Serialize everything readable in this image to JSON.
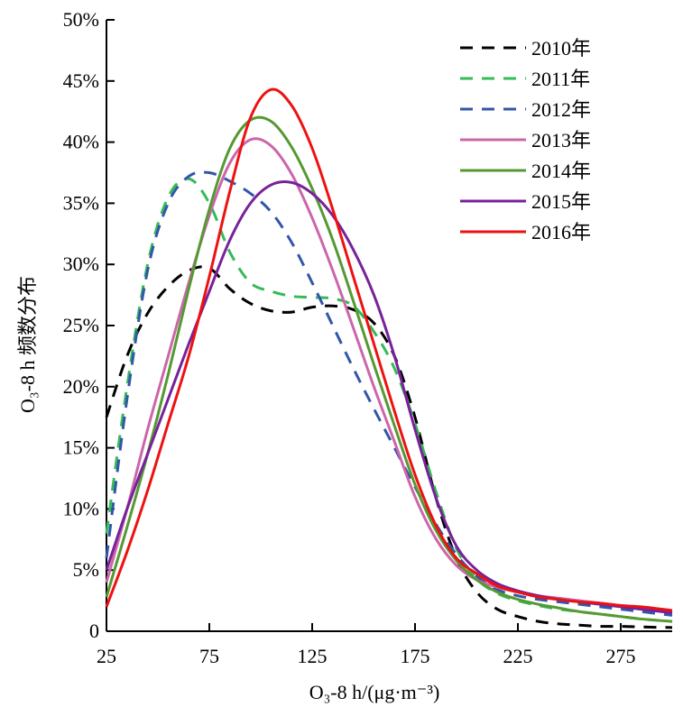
{
  "chart_data": {
    "type": "line",
    "xlabel": "O₃-8 h/(μg·m⁻³)",
    "ylabel": "O₃-8 h 频数分布",
    "xlim": [
      25,
      300
    ],
    "ylim": [
      0,
      50
    ],
    "x_ticks": [
      25,
      75,
      125,
      175,
      225,
      275
    ],
    "x_tick_labels": [
      "25",
      "75",
      "125",
      "175",
      "225",
      "275"
    ],
    "y_ticks": [
      0,
      5,
      10,
      15,
      20,
      25,
      30,
      35,
      40,
      45,
      50
    ],
    "y_tick_labels": [
      "0",
      "5%",
      "10%",
      "15%",
      "20%",
      "25%",
      "30%",
      "35%",
      "40%",
      "45%",
      "50%"
    ],
    "grid": false,
    "legend_position": "top-right",
    "series": [
      {
        "name": "2010年",
        "color": "#000000",
        "dash": true,
        "x": [
          25,
          35,
          45,
          55,
          65,
          75,
          85,
          95,
          105,
          115,
          125,
          135,
          145,
          155,
          165,
          175,
          185,
          195,
          205,
          215,
          225,
          235,
          245,
          255,
          265,
          275,
          285,
          300
        ],
        "y": [
          17.5,
          22.5,
          26.0,
          28.2,
          29.5,
          29.7,
          28.0,
          26.8,
          26.2,
          26.1,
          26.5,
          26.6,
          26.3,
          25.2,
          22.5,
          17.5,
          11.0,
          6.0,
          3.2,
          1.8,
          1.2,
          0.8,
          0.6,
          0.5,
          0.4,
          0.4,
          0.35,
          0.3
        ]
      },
      {
        "name": "2011年",
        "color": "#33bb55",
        "dash": true,
        "x": [
          25,
          35,
          45,
          55,
          65,
          75,
          85,
          95,
          105,
          115,
          125,
          135,
          145,
          155,
          165,
          175,
          185,
          195,
          205,
          215,
          225,
          235,
          245,
          255,
          265,
          275,
          285,
          300
        ],
        "y": [
          8.0,
          20.0,
          30.0,
          35.5,
          37.0,
          35.0,
          31.0,
          28.5,
          27.8,
          27.4,
          27.3,
          27.2,
          26.6,
          24.5,
          21.5,
          17.0,
          11.5,
          6.8,
          4.3,
          3.1,
          2.5,
          2.1,
          1.8,
          1.6,
          1.4,
          1.2,
          1.0,
          0.8
        ]
      },
      {
        "name": "2012年",
        "color": "#3355aa",
        "dash": true,
        "x": [
          25,
          35,
          45,
          55,
          65,
          75,
          85,
          95,
          105,
          115,
          125,
          135,
          145,
          155,
          165,
          175,
          185,
          195,
          205,
          215,
          225,
          235,
          245,
          255,
          265,
          275,
          285,
          300
        ],
        "y": [
          6.0,
          19.0,
          29.5,
          35.0,
          37.2,
          37.5,
          36.8,
          35.8,
          34.3,
          31.8,
          28.5,
          25.0,
          21.5,
          18.2,
          15.0,
          11.8,
          8.8,
          6.3,
          4.5,
          3.4,
          2.9,
          2.6,
          2.4,
          2.2,
          2.0,
          1.8,
          1.6,
          1.3
        ]
      },
      {
        "name": "2013年",
        "color": "#cc66aa",
        "dash": false,
        "x": [
          25,
          35,
          45,
          55,
          65,
          75,
          85,
          95,
          105,
          115,
          125,
          135,
          145,
          155,
          165,
          175,
          185,
          195,
          205,
          215,
          225,
          235,
          245,
          255,
          265,
          275,
          285,
          300
        ],
        "y": [
          4.0,
          10.0,
          16.5,
          22.5,
          28.5,
          34.0,
          38.3,
          40.2,
          39.7,
          37.4,
          33.8,
          29.5,
          24.8,
          20.0,
          15.5,
          11.0,
          7.6,
          5.4,
          4.2,
          3.6,
          3.2,
          2.9,
          2.7,
          2.5,
          2.3,
          2.1,
          1.9,
          1.6
        ]
      },
      {
        "name": "2014年",
        "color": "#559933",
        "dash": false,
        "x": [
          25,
          35,
          45,
          55,
          65,
          75,
          85,
          95,
          105,
          115,
          125,
          135,
          145,
          155,
          165,
          175,
          185,
          195,
          205,
          215,
          225,
          235,
          245,
          255,
          265,
          275,
          285,
          300
        ],
        "y": [
          2.8,
          8.5,
          14.5,
          21.0,
          28.0,
          34.5,
          39.5,
          41.8,
          41.7,
          39.6,
          36.2,
          32.0,
          27.0,
          21.8,
          16.8,
          12.0,
          8.3,
          5.8,
          4.2,
          3.2,
          2.6,
          2.2,
          1.9,
          1.6,
          1.4,
          1.2,
          1.0,
          0.8
        ]
      },
      {
        "name": "2015年",
        "color": "#772299",
        "dash": false,
        "x": [
          25,
          35,
          45,
          55,
          65,
          75,
          85,
          95,
          105,
          115,
          125,
          135,
          145,
          155,
          165,
          175,
          185,
          195,
          205,
          215,
          225,
          235,
          245,
          255,
          265,
          275,
          285,
          300
        ],
        "y": [
          5.0,
          10.0,
          14.5,
          19.0,
          23.5,
          27.8,
          32.0,
          35.0,
          36.5,
          36.7,
          35.8,
          34.0,
          31.2,
          27.5,
          22.5,
          16.5,
          11.0,
          7.0,
          5.0,
          3.9,
          3.3,
          2.9,
          2.6,
          2.4,
          2.2,
          2.0,
          1.8,
          1.5
        ]
      },
      {
        "name": "2016年",
        "color": "#ee1111",
        "dash": false,
        "x": [
          25,
          35,
          45,
          55,
          65,
          75,
          85,
          95,
          105,
          115,
          125,
          135,
          145,
          155,
          165,
          175,
          185,
          195,
          205,
          215,
          225,
          235,
          245,
          255,
          265,
          275,
          285,
          300
        ],
        "y": [
          2.0,
          6.5,
          11.5,
          17.0,
          22.5,
          29.0,
          36.0,
          42.0,
          44.3,
          43.0,
          39.5,
          34.5,
          29.0,
          23.5,
          18.0,
          12.8,
          8.7,
          6.0,
          4.7,
          3.7,
          3.2,
          2.8,
          2.6,
          2.4,
          2.3,
          2.1,
          2.0,
          1.7
        ]
      }
    ]
  }
}
